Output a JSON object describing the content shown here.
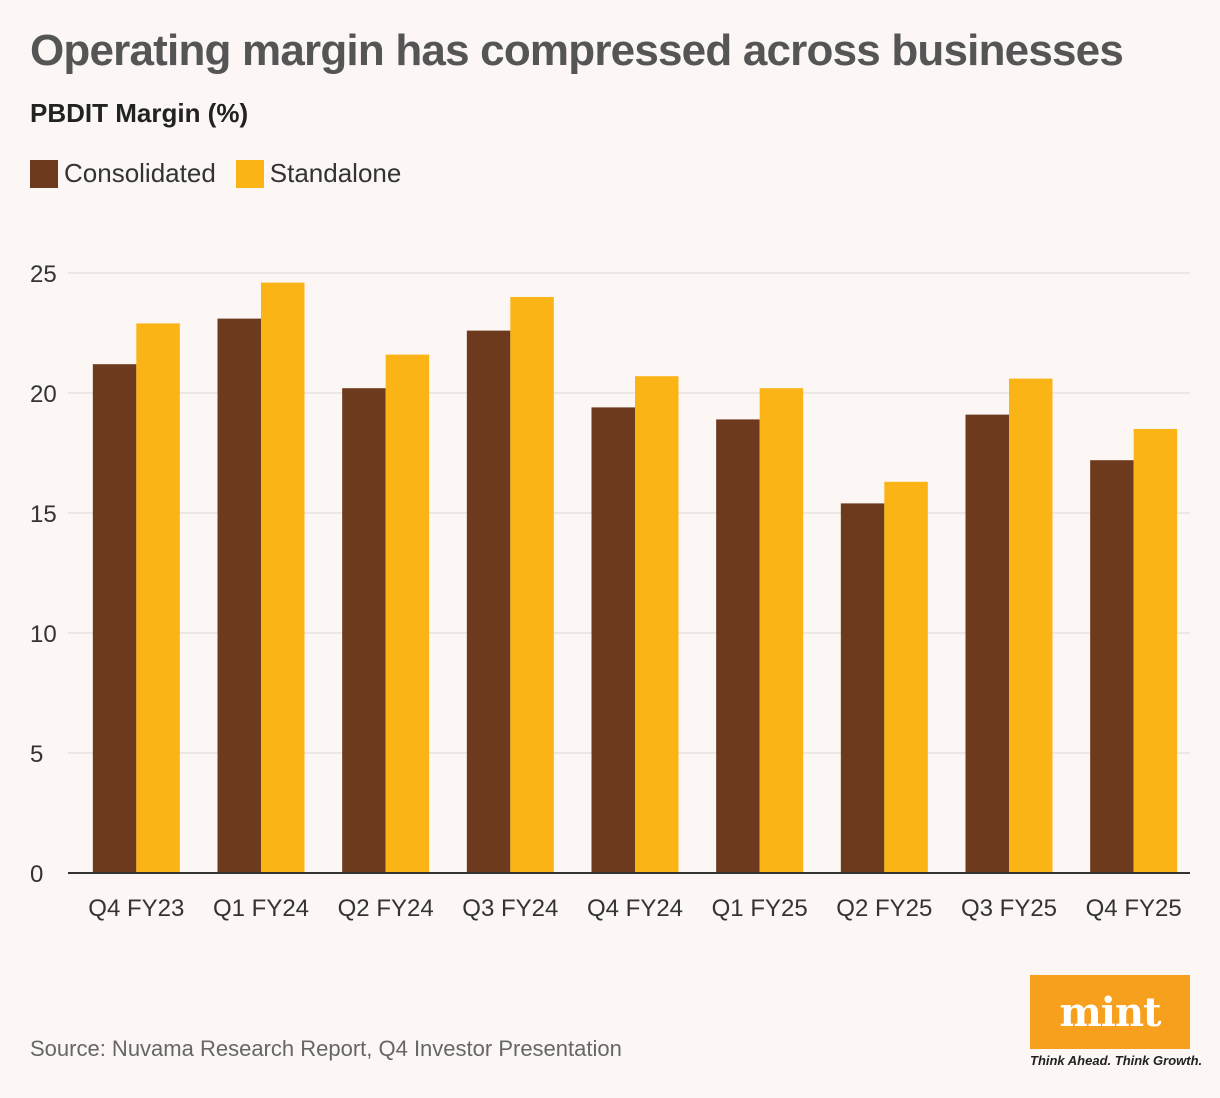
{
  "chart_data": {
    "type": "bar",
    "title": "Operating margin has compressed across businesses",
    "subtitle": "PBDIT Margin (%)",
    "xlabel": "",
    "ylabel": "",
    "categories": [
      "Q4 FY23",
      "Q1 FY24",
      "Q2 FY24",
      "Q3 FY24",
      "Q4 FY24",
      "Q1 FY25",
      "Q2 FY25",
      "Q3 FY25",
      "Q4 FY25"
    ],
    "series": [
      {
        "name": "Consolidated",
        "color": "#6e3a1d",
        "values": [
          21.2,
          23.1,
          20.2,
          22.6,
          19.4,
          18.9,
          15.4,
          19.1,
          17.2
        ]
      },
      {
        "name": "Standalone",
        "color": "#fbb416",
        "values": [
          22.9,
          24.6,
          21.6,
          24.0,
          20.7,
          20.2,
          16.3,
          20.6,
          18.5
        ]
      }
    ],
    "ylim": [
      0,
      25
    ],
    "yticks": [
      0,
      5,
      10,
      15,
      20,
      25
    ],
    "grid": true,
    "legend_position": "top-left"
  },
  "footer": {
    "source": "Source: Nuvama Research Report, Q4 Investor Presentation"
  },
  "logo": {
    "text": "mint",
    "tagline": "Think Ahead. Think Growth.",
    "color": "#f7a01d"
  }
}
